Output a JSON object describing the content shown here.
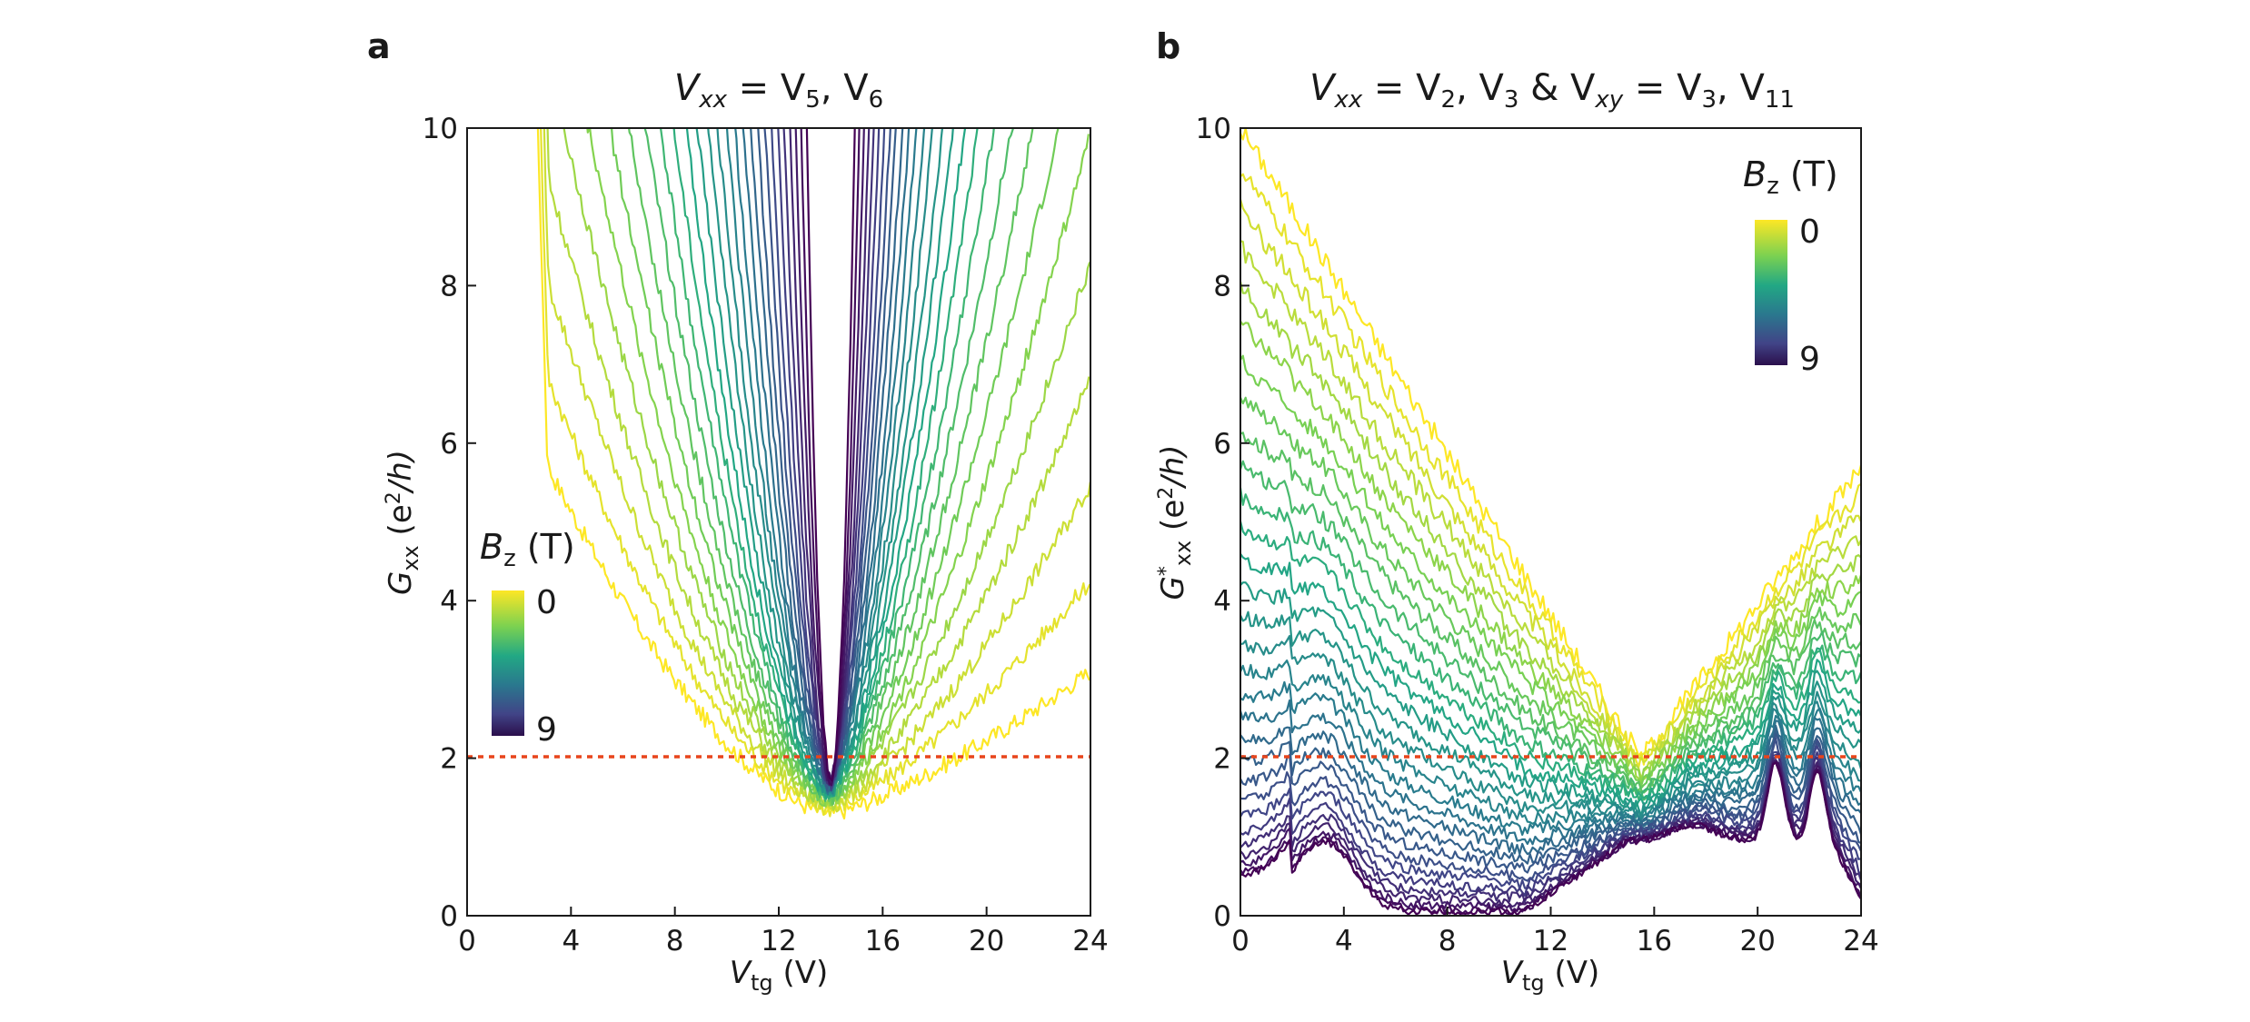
{
  "panels": [
    {
      "letter": "a",
      "title": {
        "t1": "V",
        "t1sub": "xx",
        "t2": " = V",
        "t2sub": "5",
        "t3": ", V",
        "t3sub": "6"
      },
      "ylabel": {
        "base": "G",
        "sub": "xx",
        "rest": " (e",
        "sup": "2",
        "tail": "/h)"
      },
      "xlabel": {
        "base": "V",
        "sub": "tg",
        "rest": " (V)"
      },
      "colorbar": {
        "label": "B",
        "labelsub": "z",
        "labelunit": " (T)",
        "top": "0",
        "bottom": "9"
      }
    },
    {
      "letter": "b",
      "title": {
        "t1": "V",
        "t1sub": "xx",
        "t2": " = V",
        "t2sub": "2",
        "t3": ", V",
        "t3sub": "3",
        "t4": "  &  V",
        "t4sub": "xy",
        "t5": " = V",
        "t5sub": "3",
        "t6": ", V",
        "t6sub": "11"
      },
      "ylabel": {
        "base": "G",
        "sup1": "*",
        "sub": "xx",
        "rest": " (e",
        "sup": "2",
        "tail": "/h)"
      },
      "xlabel": {
        "base": "V",
        "sub": "tg",
        "rest": " (V)"
      },
      "colorbar": {
        "label": "B",
        "labelsub": "z",
        "labelunit": " (T)",
        "top": "0",
        "bottom": "9"
      }
    }
  ],
  "chart_data": [
    {
      "type": "line",
      "panel": "a",
      "xlim": [
        0,
        24
      ],
      "ylim": [
        0,
        10
      ],
      "xticks": [
        0,
        4,
        8,
        12,
        16,
        20,
        24
      ],
      "yticks": [
        0,
        2,
        4,
        6,
        8,
        10
      ],
      "reference_line": {
        "y": 2,
        "style": "dotted",
        "color": "#e8451c"
      },
      "colormap": [
        "#fde725",
        "#7ad151",
        "#22a884",
        "#2a788e",
        "#414487",
        "#440154"
      ],
      "bz_range": [
        0,
        9
      ],
      "series_count": 28,
      "series_rule": "G_xx(V_tg) vs B_z from 0 T (yellow) to 9 T (dark); minimum near V_tg ≈ 14 V; curves narrow and rise with B_z",
      "series": [
        {
          "bz": 0,
          "min_x": 14.0,
          "min_y": 1.3,
          "left_edge_x": 1.8,
          "right_edge_x": 24,
          "right_end_y": 2.9
        },
        {
          "bz": 3,
          "min_x": 14.0,
          "min_y": 1.5
        },
        {
          "bz": 6,
          "min_x": 14.0,
          "min_y": 1.65
        },
        {
          "bz": 9,
          "min_x": 14.0,
          "min_y": 1.75
        }
      ]
    },
    {
      "type": "line",
      "panel": "b",
      "xlim": [
        0,
        24
      ],
      "ylim": [
        0,
        10
      ],
      "xticks": [
        0,
        4,
        8,
        12,
        16,
        20,
        24
      ],
      "yticks": [
        0,
        2,
        4,
        6,
        8,
        10
      ],
      "reference_line": {
        "y": 2,
        "style": "dotted",
        "color": "#e8451c"
      },
      "colormap": [
        "#fde725",
        "#7ad151",
        "#22a884",
        "#2a788e",
        "#414487",
        "#440154"
      ],
      "bz_range": [
        0,
        9
      ],
      "series_count": 30,
      "series_rule": "G*_xx(V_tg) vs B_z from 0 T (yellow) to 9 T (dark)",
      "series": [
        {
          "bz": 0,
          "points": [
            [
              0,
              10
            ],
            [
              4,
              8.1
            ],
            [
              8,
              5.7
            ],
            [
              12,
              3.3
            ],
            [
              14,
              2.1
            ],
            [
              15.5,
              2.0
            ],
            [
              16,
              2.2
            ],
            [
              20,
              3.9
            ],
            [
              24,
              5.7
            ]
          ]
        },
        {
          "bz": 9,
          "points": [
            [
              0,
              0.5
            ],
            [
              2,
              0.8
            ],
            [
              3.5,
              0.9
            ],
            [
              5,
              0.2
            ],
            [
              6,
              0.05
            ],
            [
              10,
              0.05
            ],
            [
              12,
              0.3
            ],
            [
              14,
              0.7
            ],
            [
              16,
              0.95
            ],
            [
              18,
              1.0
            ],
            [
              20,
              1.3
            ],
            [
              20.7,
              2.0
            ],
            [
              21.5,
              1.2
            ],
            [
              22.3,
              2.0
            ],
            [
              23.3,
              0.8
            ],
            [
              24,
              0.2
            ]
          ]
        }
      ]
    }
  ]
}
